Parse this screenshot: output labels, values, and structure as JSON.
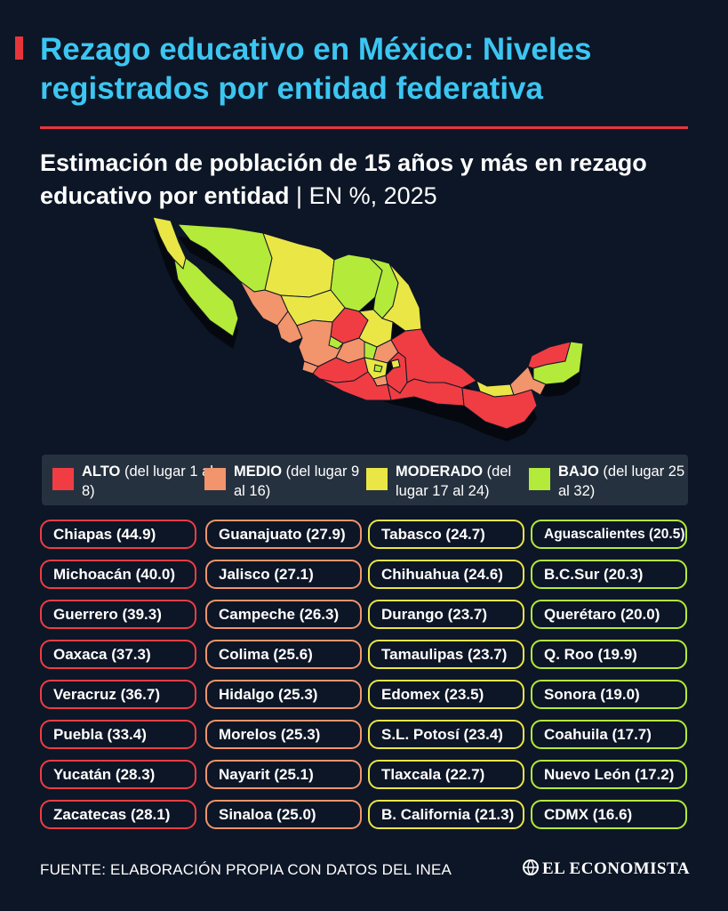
{
  "title": "Rezago educativo en México: Niveles registrados por entidad federativa",
  "subtitle": {
    "main": "Estimación de población de 15 años y más en rezago educativo por entidad",
    "separator": " | ",
    "unit": "EN %, 2025"
  },
  "colors": {
    "background": "#0d1626",
    "title": "#3cc6f2",
    "accent": "#e8353b",
    "alto": "#ef3d43",
    "medio": "#f2946c",
    "moderado": "#eae646",
    "bajo": "#b4ea3a"
  },
  "legend": [
    {
      "level": "alto",
      "name": "ALTO",
      "range": "(del lugar 1 al 8)"
    },
    {
      "level": "medio",
      "name": "MEDIO",
      "range": "(del lugar 9 al 16)"
    },
    {
      "level": "moderado",
      "name": "MODERADO",
      "range": "(del lugar 17 al 24)"
    },
    {
      "level": "bajo",
      "name": "BAJO",
      "range": "(del lugar 25 al 32)"
    }
  ],
  "groups": [
    {
      "level": "alto",
      "items": [
        {
          "state": "Chiapas",
          "value": "44.9"
        },
        {
          "state": "Michoacán",
          "value": "40.0"
        },
        {
          "state": "Guerrero",
          "value": "39.3"
        },
        {
          "state": "Oaxaca",
          "value": "37.3"
        },
        {
          "state": "Veracruz",
          "value": "36.7"
        },
        {
          "state": "Puebla",
          "value": "33.4"
        },
        {
          "state": "Yucatán",
          "value": "28.3"
        },
        {
          "state": "Zacatecas",
          "value": "28.1"
        }
      ]
    },
    {
      "level": "medio",
      "items": [
        {
          "state": "Guanajuato",
          "value": "27.9"
        },
        {
          "state": "Jalisco",
          "value": "27.1"
        },
        {
          "state": "Campeche",
          "value": "26.3"
        },
        {
          "state": "Colima",
          "value": "25.6"
        },
        {
          "state": "Hidalgo",
          "value": "25.3"
        },
        {
          "state": "Morelos",
          "value": "25.3"
        },
        {
          "state": "Nayarit",
          "value": "25.1"
        },
        {
          "state": "Sinaloa",
          "value": "25.0"
        }
      ]
    },
    {
      "level": "moderado",
      "items": [
        {
          "state": "Tabasco",
          "value": "24.7"
        },
        {
          "state": "Chihuahua",
          "value": "24.6"
        },
        {
          "state": "Durango",
          "value": "23.7"
        },
        {
          "state": "Tamaulipas",
          "value": "23.7"
        },
        {
          "state": "Edomex",
          "value": "23.5"
        },
        {
          "state": "S.L. Potosí",
          "value": "23.4"
        },
        {
          "state": "Tlaxcala",
          "value": "22.7"
        },
        {
          "state": "B. California",
          "value": "21.3"
        }
      ]
    },
    {
      "level": "bajo",
      "items": [
        {
          "state": "Aguascalientes",
          "value": "20.5"
        },
        {
          "state": "B.C.Sur",
          "value": "20.3"
        },
        {
          "state": "Querétaro",
          "value": "20.0"
        },
        {
          "state": "Q. Roo",
          "value": "19.9"
        },
        {
          "state": "Sonora",
          "value": "19.0"
        },
        {
          "state": "Coahuila",
          "value": "17.7"
        },
        {
          "state": "Nuevo León",
          "value": "17.2"
        },
        {
          "state": "CDMX",
          "value": "16.6"
        }
      ]
    }
  ],
  "source": "FUENTE: ELABORACIÓN PROPIA CON DATOS DEL INEA",
  "logo": "EL ECONOMISTA"
}
